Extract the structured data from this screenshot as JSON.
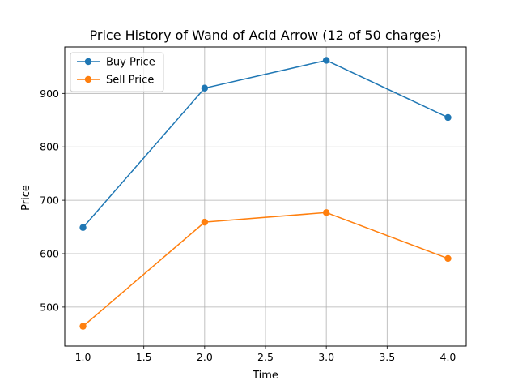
{
  "chart_data": {
    "type": "line",
    "title": "Price History of Wand of Acid Arrow (12 of 50 charges)",
    "xlabel": "Time",
    "ylabel": "Price",
    "x": [
      1.0,
      2.0,
      3.0,
      4.0
    ],
    "xlim": [
      0.85,
      4.15
    ],
    "ylim": [
      427,
      987
    ],
    "xticks": [
      1.0,
      1.5,
      2.0,
      2.5,
      3.0,
      3.5,
      4.0
    ],
    "xtick_labels": [
      "1.0",
      "1.5",
      "2.0",
      "2.5",
      "3.0",
      "3.5",
      "4.0"
    ],
    "yticks": [
      500,
      600,
      700,
      800,
      900
    ],
    "ytick_labels": [
      "500",
      "600",
      "700",
      "800",
      "900"
    ],
    "grid": true,
    "legend_position": "top-left",
    "series": [
      {
        "name": "Buy Price",
        "color": "#1f77b4",
        "marker": "circle",
        "values": [
          649,
          910,
          962,
          855
        ]
      },
      {
        "name": "Sell Price",
        "color": "#ff7f0e",
        "marker": "circle",
        "values": [
          464,
          659,
          677,
          591
        ]
      }
    ]
  }
}
